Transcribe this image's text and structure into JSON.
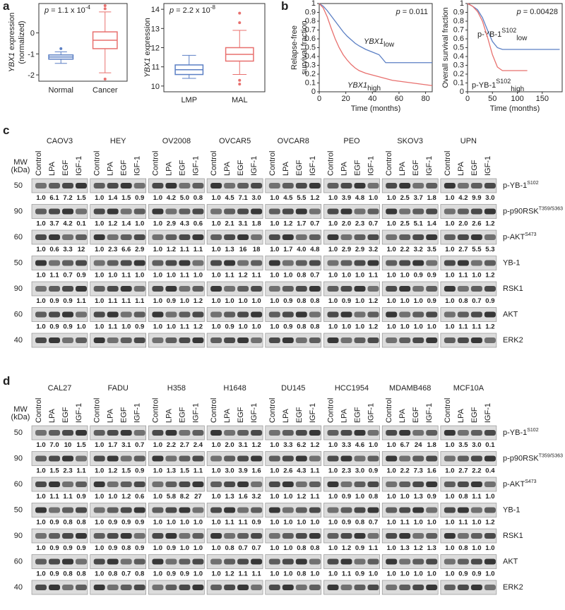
{
  "panel_labels": [
    "a",
    "b",
    "c",
    "d"
  ],
  "chart_data": [
    {
      "type": "box",
      "p_label": "p",
      "p_text": " = 1.1 x 10",
      "p_exp": "-4",
      "ylabel_italic": "YBX1",
      "ylabel_rest": " expression",
      "ylabel_line2": "(normalized)",
      "categories": [
        "Normal",
        "Cancer"
      ],
      "colors": [
        "#5b7fc4",
        "#e8706e"
      ],
      "ylim": [
        -2.3,
        1.4
      ],
      "yticks": [
        -2,
        -1,
        0
      ],
      "whislo": [
        -1.45,
        -1.9
      ],
      "q1": [
        -1.25,
        -0.75
      ],
      "median": [
        -1.15,
        -0.35
      ],
      "q3": [
        -1.05,
        0.05
      ],
      "whishi": [
        -0.9,
        1.0
      ],
      "fliers": [
        [
          -0.75
        ],
        [
          1.3,
          1.15,
          -2.2
        ]
      ]
    },
    {
      "type": "box",
      "p_label": "p",
      "p_text": " = 2.2 x 10",
      "p_exp": "-8",
      "ylabel_italic": "YBX1",
      "ylabel_rest": " expression",
      "categories": [
        "LMP",
        "MAL"
      ],
      "colors": [
        "#5b7fc4",
        "#e8706e"
      ],
      "ylim": [
        9.7,
        14.3
      ],
      "yticks": [
        10,
        11,
        12,
        13,
        14
      ],
      "whislo": [
        10.4,
        10.6
      ],
      "q1": [
        10.6,
        11.3
      ],
      "median": [
        10.85,
        11.65
      ],
      "q3": [
        11.1,
        12.0
      ],
      "whishi": [
        11.6,
        12.9
      ],
      "fliers": [
        [],
        [
          13.8,
          13.3,
          10.3,
          10.1
        ]
      ]
    },
    {
      "type": "km",
      "p_label": "p",
      "p_text": " = 0.011",
      "ylabel": [
        "Relapse-free",
        "survival fraction"
      ],
      "xlabel": "Time (months)",
      "xlim": [
        0,
        85
      ],
      "xticks": [
        0,
        20,
        40,
        60,
        80
      ],
      "ylim": [
        0,
        1
      ],
      "yticks": [
        0,
        0.1,
        0.2,
        0.3,
        0.4,
        0.5,
        0.6,
        0.7,
        0.8,
        0.9,
        1
      ],
      "series": [
        {
          "label": "YBX1",
          "label_italic": true,
          "label_sub": "low",
          "color": "#5b7fc4",
          "x": [
            0,
            3,
            6,
            9,
            12,
            15,
            18,
            21,
            24,
            27,
            30,
            35,
            40,
            45,
            50,
            55,
            60,
            70,
            85
          ],
          "y": [
            1,
            0.97,
            0.92,
            0.86,
            0.8,
            0.74,
            0.68,
            0.63,
            0.59,
            0.55,
            0.52,
            0.48,
            0.45,
            0.42,
            0.33,
            0.33,
            0.33,
            0.33,
            0.33
          ]
        },
        {
          "label": "YBX1",
          "label_italic": true,
          "label_sub": "high",
          "color": "#e8706e",
          "x": [
            0,
            3,
            6,
            9,
            12,
            15,
            18,
            21,
            24,
            27,
            30,
            35,
            40,
            45,
            50,
            55,
            60,
            70,
            80,
            85
          ],
          "y": [
            1,
            0.95,
            0.85,
            0.72,
            0.6,
            0.5,
            0.42,
            0.36,
            0.31,
            0.27,
            0.24,
            0.21,
            0.19,
            0.17,
            0.15,
            0.13,
            0.12,
            0.1,
            0.08,
            0.07
          ]
        }
      ]
    },
    {
      "type": "km",
      "p_label": "p",
      "p_text": " = 0.00428",
      "ylabel": [
        "Overall survival fraction"
      ],
      "xlabel": "Time (months)",
      "xlim": [
        0,
        190
      ],
      "xticks": [
        0,
        50,
        100,
        150
      ],
      "ylim": [
        0,
        1
      ],
      "yticks": [
        0,
        0.1,
        0.2,
        0.3,
        0.4,
        0.5,
        0.6,
        0.7,
        0.8,
        0.9,
        1
      ],
      "series": [
        {
          "label": "p-YB-1",
          "label_italic": false,
          "label_sup": "S102",
          "label_sub": "low",
          "color": "#5b7fc4",
          "x": [
            0,
            10,
            20,
            30,
            40,
            50,
            60,
            70,
            80,
            100,
            120,
            150,
            185
          ],
          "y": [
            1,
            0.97,
            0.93,
            0.84,
            0.7,
            0.57,
            0.5,
            0.48,
            0.48,
            0.48,
            0.48,
            0.48,
            0.48
          ]
        },
        {
          "label": "p-YB-1",
          "label_italic": false,
          "label_sup": "S102",
          "label_sub": "high",
          "color": "#e8706e",
          "x": [
            0,
            10,
            20,
            30,
            40,
            50,
            60,
            70,
            80,
            100,
            120
          ],
          "y": [
            1,
            0.97,
            0.91,
            0.8,
            0.62,
            0.42,
            0.28,
            0.24,
            0.24,
            0.24,
            0.24
          ]
        }
      ]
    }
  ],
  "blots": [
    {
      "cell_lines": [
        "CAOV3",
        "HEY",
        "OV2008",
        "OVCAR5",
        "OVCAR8",
        "PEO",
        "SKOV3",
        "UPN"
      ],
      "lanes": [
        "Control",
        "LPA",
        "EGF",
        "IGF-1"
      ],
      "mw_header": [
        "MW",
        "(kDa)"
      ],
      "rows": [
        {
          "mw": 50,
          "protein": "p-YB-1",
          "sup": "S102",
          "quant": [
            [
              "1.0",
              "6.1",
              "7.2",
              "1.5"
            ],
            [
              "1.0",
              "1.4",
              "1.5",
              "0.9"
            ],
            [
              "1.0",
              "4.2",
              "5.0",
              "0.8"
            ],
            [
              "1.0",
              "4.5",
              "7.1",
              "3.0"
            ],
            [
              "1.0",
              "4.5",
              "5.5",
              "1.2"
            ],
            [
              "1.0",
              "3.9",
              "4.8",
              "1.0"
            ],
            [
              "1.0",
              "2.5",
              "3.7",
              "1.8"
            ],
            [
              "1.0",
              "4.2",
              "9.9",
              "3.0"
            ]
          ]
        },
        {
          "mw": 90,
          "protein": "p-p90RSK",
          "sup": "T359/S363",
          "quant": [
            [
              "1.0",
              "3.7",
              "4.2",
              "0.1"
            ],
            [
              "1.0",
              "1.2",
              "1.4",
              "1.0"
            ],
            [
              "1.0",
              "2.9",
              "4.3",
              "0.6"
            ],
            [
              "1.0",
              "2.1",
              "3.1",
              "1.8"
            ],
            [
              "1.0",
              "1.2",
              "1.7",
              "0.7"
            ],
            [
              "1.0",
              "2.0",
              "2.3",
              "0.7"
            ],
            [
              "1.0",
              "2.5",
              "5.1",
              "1.4"
            ],
            [
              "1.0",
              "2.0",
              "2.6",
              "1.2"
            ]
          ]
        },
        {
          "mw": 60,
          "protein": "p-AKT",
          "sup": "S473",
          "quant": [
            [
              "1.0",
              "0.6",
              "3.3",
              "12"
            ],
            [
              "1.0",
              "2.3",
              "6.6",
              "2.9"
            ],
            [
              "1.0",
              "1.2",
              "1.1",
              "1.1"
            ],
            [
              "1.0",
              "1.3",
              "16",
              "18"
            ],
            [
              "1.0",
              "1.7",
              "4.0",
              "4.8"
            ],
            [
              "1.0",
              "2.9",
              "2.9",
              "3.2"
            ],
            [
              "1.0",
              "2.2",
              "3.2",
              "3.5"
            ],
            [
              "1.0",
              "2.7",
              "5.5",
              "5.3"
            ]
          ]
        },
        {
          "mw": 50,
          "protein": "YB-1",
          "quant": [
            [
              "1.0",
              "1.1",
              "0.7",
              "0.9"
            ],
            [
              "1.0",
              "1.0",
              "1.1",
              "1.0"
            ],
            [
              "1.0",
              "1.0",
              "1.1",
              "1.0"
            ],
            [
              "1.0",
              "1.1",
              "1.2",
              "1.1"
            ],
            [
              "1.0",
              "1.0",
              "0.8",
              "0.7"
            ],
            [
              "1.0",
              "1.0",
              "1.0",
              "1.1"
            ],
            [
              "1.0",
              "1.0",
              "0.9",
              "0.9"
            ],
            [
              "1.0",
              "1.1",
              "1.0",
              "1.2"
            ]
          ]
        },
        {
          "mw": 90,
          "protein": "RSK1",
          "quant": [
            [
              "1.0",
              "0.9",
              "0.9",
              "1.1"
            ],
            [
              "1.0",
              "1.1",
              "1.1",
              "1.1"
            ],
            [
              "1.0",
              "0.9",
              "1.0",
              "1.2"
            ],
            [
              "1.0",
              "1.0",
              "1.0",
              "1.0"
            ],
            [
              "1.0",
              "0.9",
              "0.8",
              "0.8"
            ],
            [
              "1.0",
              "0.9",
              "1.0",
              "1.2"
            ],
            [
              "1.0",
              "1.0",
              "1.0",
              "0.9"
            ],
            [
              "1.0",
              "0.8",
              "0.7",
              "0.9"
            ]
          ]
        },
        {
          "mw": 60,
          "protein": "AKT",
          "quant": [
            [
              "1.0",
              "0.9",
              "0.9",
              "1.0"
            ],
            [
              "1.0",
              "1.1",
              "1.0",
              "0.9"
            ],
            [
              "1.0",
              "1.0",
              "1.1",
              "1.2"
            ],
            [
              "1.0",
              "0.9",
              "1.0",
              "1.0"
            ],
            [
              "1.0",
              "0.9",
              "0.8",
              "0.8"
            ],
            [
              "1.0",
              "1.0",
              "1.0",
              "1.2"
            ],
            [
              "1.0",
              "1.0",
              "1.0",
              "1.0"
            ],
            [
              "1.0",
              "1.1",
              "1.1",
              "1.2"
            ]
          ]
        },
        {
          "mw": 40,
          "protein": "ERK2"
        }
      ]
    },
    {
      "cell_lines": [
        "CAL27",
        "FADU",
        "H358",
        "H1648",
        "DU145",
        "HCC1954",
        "MDAMB468",
        "MCF10A"
      ],
      "lanes": [
        "Control",
        "LPA",
        "EGF",
        "IGF-1"
      ],
      "mw_header": [
        "MW",
        "(kDa)"
      ],
      "rows": [
        {
          "mw": 50,
          "protein": "p-YB-1",
          "sup": "S102",
          "quant": [
            [
              "1.0",
              "7.0",
              "10",
              "1.5"
            ],
            [
              "1.0",
              "1.7",
              "3.1",
              "0.7"
            ],
            [
              "1.0",
              "2.2",
              "2.7",
              "2.4"
            ],
            [
              "1.0",
              "2.0",
              "3.1",
              "1.2"
            ],
            [
              "1.0",
              "3.3",
              "6.2",
              "1.2"
            ],
            [
              "1.0",
              "3.3",
              "4.6",
              "1.0"
            ],
            [
              "1.0",
              "6.7",
              "24",
              "1.8"
            ],
            [
              "1.0",
              "3.5",
              "3.0",
              "0.1"
            ]
          ]
        },
        {
          "mw": 90,
          "protein": "p-p90RSK",
          "sup": "T359/S363",
          "quant": [
            [
              "1.0",
              "1.5",
              "2.3",
              "1.1"
            ],
            [
              "1.0",
              "1.2",
              "1.5",
              "0.9"
            ],
            [
              "1.0",
              "1.3",
              "1.5",
              "1.1"
            ],
            [
              "1.0",
              "3.0",
              "3.9",
              "1.6"
            ],
            [
              "1.0",
              "2.6",
              "4.3",
              "1.1"
            ],
            [
              "1.0",
              "2.3",
              "3.0",
              "0.9"
            ],
            [
              "1.0",
              "2.2",
              "7.3",
              "1.6"
            ],
            [
              "1.0",
              "2.7",
              "2.2",
              "0.4"
            ]
          ]
        },
        {
          "mw": 60,
          "protein": "p-AKT",
          "sup": "S473",
          "quant": [
            [
              "1.0",
              "1.1",
              "1.1",
              "0.9"
            ],
            [
              "1.0",
              "1.0",
              "1.2",
              "0.6"
            ],
            [
              "1.0",
              "5.8",
              "8.2",
              "27"
            ],
            [
              "1.0",
              "1.3",
              "1.6",
              "3.2"
            ],
            [
              "1.0",
              "1.0",
              "1.2",
              "1.1"
            ],
            [
              "1.0",
              "0.9",
              "1.0",
              "0.8"
            ],
            [
              "1.0",
              "1.0",
              "1.3",
              "0.9"
            ],
            [
              "1.0",
              "0.8",
              "1.1",
              "1.0"
            ]
          ]
        },
        {
          "mw": 50,
          "protein": "YB-1",
          "quant": [
            [
              "1.0",
              "0.9",
              "0.8",
              "0.8"
            ],
            [
              "1.0",
              "0.9",
              "0.9",
              "0.9"
            ],
            [
              "1.0",
              "1.0",
              "1.0",
              "1.0"
            ],
            [
              "1.0",
              "1.1",
              "1.1",
              "0.9"
            ],
            [
              "1.0",
              "1.0",
              "1.0",
              "1.0"
            ],
            [
              "1.0",
              "0.9",
              "0.8",
              "0.7"
            ],
            [
              "1.0",
              "1.1",
              "1.0",
              "1.0"
            ],
            [
              "1.0",
              "1.1",
              "1.0",
              "1.2"
            ]
          ]
        },
        {
          "mw": 90,
          "protein": "RSK1",
          "quant": [
            [
              "1.0",
              "0.9",
              "0.9",
              "0.9"
            ],
            [
              "1.0",
              "0.9",
              "0.8",
              "0.9"
            ],
            [
              "1.0",
              "0.9",
              "1.0",
              "1.0"
            ],
            [
              "1.0",
              "0.8",
              "0.7",
              "0.7"
            ],
            [
              "1.0",
              "1.0",
              "0.8",
              "0.8"
            ],
            [
              "1.0",
              "1.2",
              "0.9",
              "1.1"
            ],
            [
              "1.0",
              "1.3",
              "1.2",
              "1.3"
            ],
            [
              "1.0",
              "0.8",
              "1.0",
              "1.0"
            ]
          ]
        },
        {
          "mw": 60,
          "protein": "AKT",
          "quant": [
            [
              "1.0",
              "0.9",
              "0.8",
              "0.8"
            ],
            [
              "1.0",
              "0.8",
              "0.7",
              "0.8"
            ],
            [
              "1.0",
              "0.9",
              "0.9",
              "1.0"
            ],
            [
              "1.0",
              "1.2",
              "1.1",
              "1.1"
            ],
            [
              "1.0",
              "1.0",
              "0.8",
              "1.0"
            ],
            [
              "1.0",
              "1.1",
              "0.9",
              "1.0"
            ],
            [
              "1.0",
              "1.0",
              "1.0",
              "1.0"
            ],
            [
              "1.0",
              "0.9",
              "0.9",
              "1.0"
            ]
          ]
        },
        {
          "mw": 40,
          "protein": "ERK2"
        }
      ]
    }
  ]
}
